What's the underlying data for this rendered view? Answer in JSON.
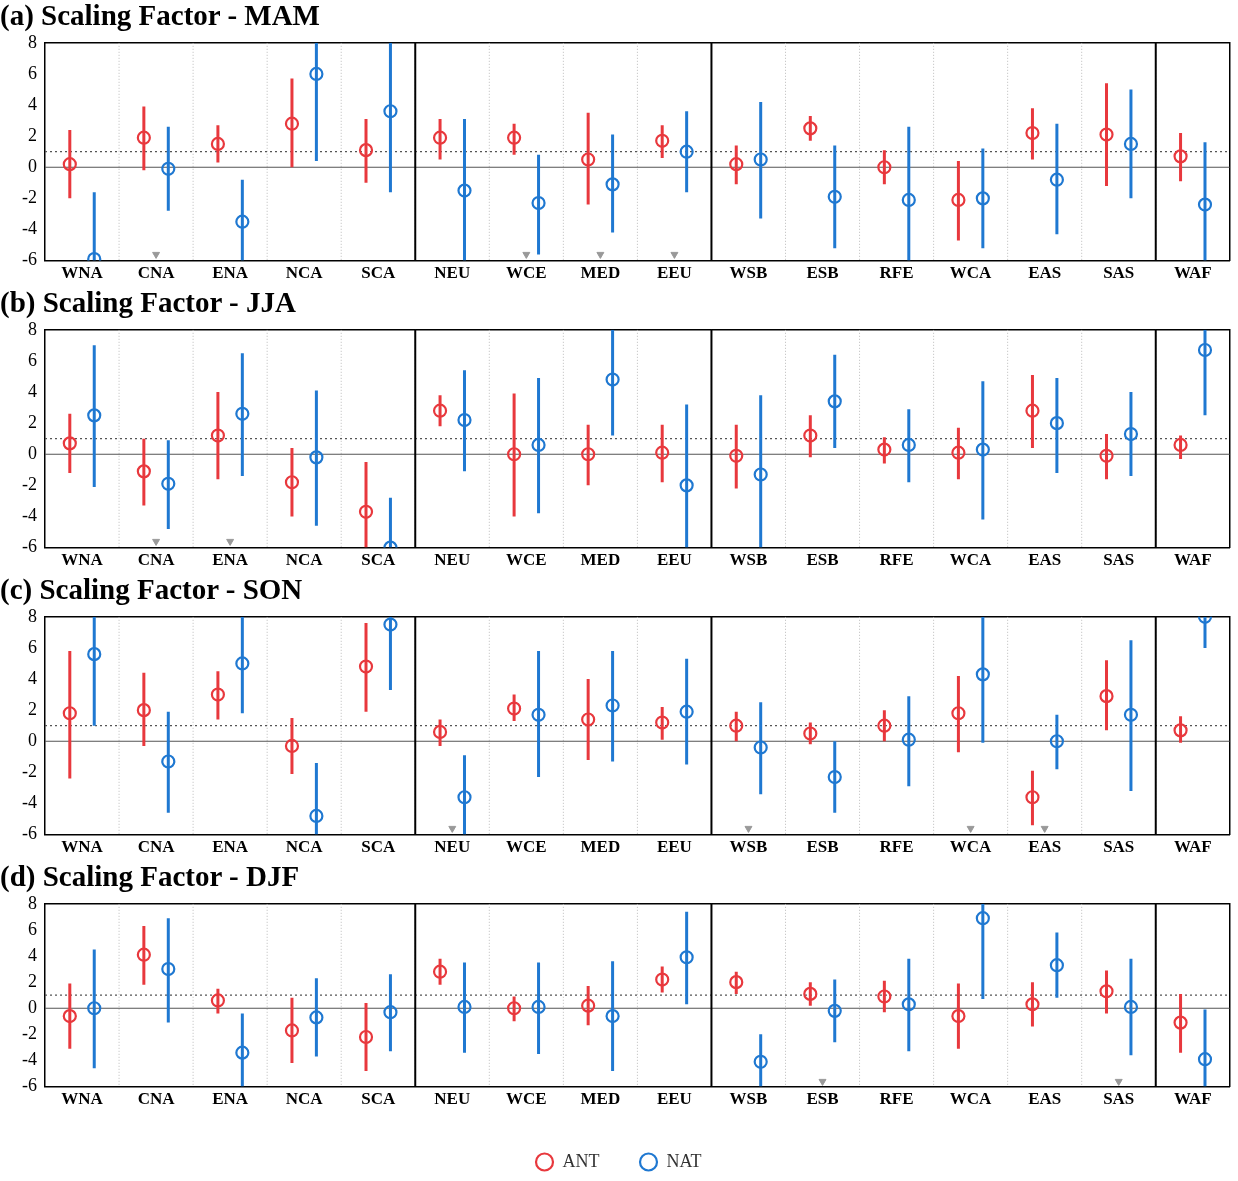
{
  "chart_data": [
    {
      "type": "scatter",
      "title": "(a) Scaling Factor - MAM",
      "categories": [
        "WNA",
        "CNA",
        "ENA",
        "NCA",
        "SCA",
        "NEU",
        "WCE",
        "MED",
        "EEU",
        "WSB",
        "ESB",
        "RFE",
        "WCA",
        "EAS",
        "SAS",
        "WAF"
      ],
      "ylim": [
        -6,
        8
      ],
      "yticks": [
        -6,
        -4,
        -2,
        0,
        2,
        4,
        6,
        8
      ],
      "grid": "x",
      "marker": "circle",
      "legend": false,
      "series": [
        {
          "color": "#e8383d",
          "values": [
            0.2,
            1.9,
            1.5,
            2.8,
            1.1,
            1.9,
            1.9,
            0.5,
            1.7,
            0.2,
            2.5,
            0.0,
            -2.1,
            2.2,
            2.1,
            0.7
          ],
          "errors": [
            [
              -2,
              2.4
            ],
            [
              -0.2,
              3.9
            ],
            [
              0.3,
              2.7
            ],
            [
              0,
              5.7
            ],
            [
              -1,
              3.1
            ],
            [
              0.5,
              3.1
            ],
            [
              0.8,
              2.8
            ],
            [
              -2.4,
              3.5
            ],
            [
              0.6,
              2.7
            ],
            [
              -1.1,
              1.4
            ],
            [
              1.7,
              3.3
            ],
            [
              -1.1,
              1.1
            ],
            [
              -4.7,
              0.4
            ],
            [
              0.5,
              3.8
            ],
            [
              -1.2,
              5.4
            ],
            [
              -0.9,
              2.2
            ]
          ]
        },
        {
          "color": "#1f78d1",
          "values": [
            -5.9,
            -0.1,
            -3.5,
            6.0,
            3.6,
            -1.5,
            -2.3,
            -1.1,
            1.0,
            0.5,
            -1.9,
            -2.1,
            -2.0,
            -0.8,
            1.5,
            -2.4
          ],
          "errors": [
            [
              -6,
              -1.6
            ],
            [
              -2.8,
              2.6
            ],
            [
              -6,
              -0.8
            ],
            [
              0.4,
              8
            ],
            [
              -1.6,
              8
            ],
            [
              -6,
              3.1
            ],
            [
              -5.6,
              0.8
            ],
            [
              -4.2,
              2.1
            ],
            [
              -1.6,
              3.6
            ],
            [
              -3.3,
              4.2
            ],
            [
              -5.2,
              1.4
            ],
            [
              -6,
              2.6
            ],
            [
              -5.2,
              1.2
            ],
            [
              -4.3,
              2.8
            ],
            [
              -2,
              5
            ],
            [
              -6,
              1.6
            ]
          ]
        },
        {
          "color": "#999999",
          "marker": "triangle",
          "values": [
            null,
            -5.6,
            null,
            null,
            null,
            null,
            -5.6,
            -5.6,
            -5.6,
            null,
            null,
            null,
            null,
            null,
            null,
            null
          ]
        }
      ],
      "ref_lines": [
        {
          "axis": "y",
          "value": 0,
          "line_style": "solid"
        },
        {
          "axis": "y",
          "value": 1,
          "line_style": "dotted"
        }
      ]
    },
    {
      "type": "scatter",
      "title": "(b) Scaling Factor - JJA",
      "categories": [
        "WNA",
        "CNA",
        "ENA",
        "NCA",
        "SCA",
        "NEU",
        "WCE",
        "MED",
        "EEU",
        "WSB",
        "ESB",
        "RFE",
        "WCA",
        "EAS",
        "SAS",
        "WAF"
      ],
      "ylim": [
        -6,
        8
      ],
      "yticks": [
        -6,
        -4,
        -2,
        0,
        2,
        4,
        6,
        8
      ],
      "grid": "x",
      "marker": "circle",
      "legend": false,
      "series": [
        {
          "color": "#e8383d",
          "values": [
            0.7,
            -1.1,
            1.2,
            -1.8,
            -3.7,
            2.8,
            0.0,
            0.0,
            0.1,
            -0.1,
            1.2,
            0.3,
            0.1,
            2.8,
            -0.1,
            0.6
          ],
          "errors": [
            [
              -1.2,
              2.6
            ],
            [
              -3.3,
              1.0
            ],
            [
              -1.6,
              4.0
            ],
            [
              -4.0,
              0.4
            ],
            [
              -6,
              -0.5
            ],
            [
              1.8,
              3.8
            ],
            [
              -4.0,
              3.9
            ],
            [
              -2.0,
              1.9
            ],
            [
              -1.8,
              1.9
            ],
            [
              -2.2,
              1.9
            ],
            [
              -0.2,
              2.5
            ],
            [
              -0.6,
              1.1
            ],
            [
              -1.6,
              1.7
            ],
            [
              0.4,
              5.1
            ],
            [
              -1.6,
              1.3
            ],
            [
              -0.3,
              1.2
            ]
          ]
        },
        {
          "color": "#1f78d1",
          "values": [
            2.5,
            -1.9,
            2.6,
            -0.2,
            -6,
            2.2,
            0.6,
            4.8,
            -2.0,
            -1.3,
            3.4,
            0.6,
            0.3,
            2.0,
            1.3,
            6.7
          ],
          "errors": [
            [
              -2.1,
              7.0
            ],
            [
              -4.8,
              0.9
            ],
            [
              -1.4,
              6.5
            ],
            [
              -4.6,
              4.1
            ],
            [
              -6,
              -2.8
            ],
            [
              -1.1,
              5.4
            ],
            [
              -3.8,
              4.9
            ],
            [
              1.2,
              8
            ],
            [
              -6,
              3.2
            ],
            [
              -6,
              3.8
            ],
            [
              0.4,
              6.4
            ],
            [
              -1.8,
              2.9
            ],
            [
              -4.2,
              4.7
            ],
            [
              -1.2,
              4.9
            ],
            [
              -1.4,
              4.0
            ],
            [
              2.5,
              8
            ]
          ]
        },
        {
          "color": "#999999",
          "marker": "triangle",
          "values": [
            null,
            -5.6,
            -5.6,
            null,
            null,
            null,
            null,
            null,
            null,
            null,
            null,
            null,
            null,
            null,
            null,
            null
          ]
        }
      ],
      "ref_lines": [
        {
          "axis": "y",
          "value": 0,
          "line_style": "solid"
        },
        {
          "axis": "y",
          "value": 1,
          "line_style": "dotted"
        }
      ]
    },
    {
      "type": "scatter",
      "title": "(c) Scaling Factor - SON",
      "categories": [
        "WNA",
        "CNA",
        "ENA",
        "NCA",
        "SCA",
        "NEU",
        "WCE",
        "MED",
        "EEU",
        "WSB",
        "ESB",
        "RFE",
        "WCA",
        "EAS",
        "SAS",
        "WAF"
      ],
      "ylim": [
        -6,
        8
      ],
      "yticks": [
        -6,
        -4,
        -2,
        0,
        2,
        4,
        6,
        8
      ],
      "grid": "x",
      "marker": "circle",
      "legend": false,
      "series": [
        {
          "color": "#e8383d",
          "values": [
            1.8,
            2.0,
            3.0,
            -0.3,
            4.8,
            0.6,
            2.1,
            1.4,
            1.2,
            1.0,
            0.5,
            1.0,
            1.8,
            -3.6,
            2.9,
            0.7
          ],
          "errors": [
            [
              -2.4,
              5.8
            ],
            [
              -0.3,
              4.4
            ],
            [
              1.4,
              4.5
            ],
            [
              -2.1,
              1.5
            ],
            [
              1.9,
              7.6
            ],
            [
              -0.3,
              1.4
            ],
            [
              1.3,
              3.0
            ],
            [
              -1.2,
              4.0
            ],
            [
              0.1,
              2.2
            ],
            [
              0.0,
              1.9
            ],
            [
              -0.2,
              1.2
            ],
            [
              0.0,
              2.0
            ],
            [
              -0.7,
              4.2
            ],
            [
              -5.4,
              -1.9
            ],
            [
              0.7,
              5.2
            ],
            [
              -0.1,
              1.6
            ]
          ]
        },
        {
          "color": "#1f78d1",
          "values": [
            5.6,
            -1.3,
            5.0,
            -4.8,
            7.5,
            -3.6,
            1.7,
            2.3,
            1.9,
            -0.4,
            -2.3,
            0.1,
            4.3,
            0.0,
            1.7,
            8
          ],
          "errors": [
            [
              1.0,
              8
            ],
            [
              -4.6,
              1.9
            ],
            [
              1.8,
              8
            ],
            [
              -6,
              -1.4
            ],
            [
              3.3,
              8
            ],
            [
              -6,
              -0.9
            ],
            [
              -2.3,
              5.8
            ],
            [
              -1.3,
              5.8
            ],
            [
              -1.5,
              5.3
            ],
            [
              -3.4,
              2.5
            ],
            [
              -4.6,
              0.0
            ],
            [
              -2.9,
              2.9
            ],
            [
              -0.1,
              8
            ],
            [
              -1.8,
              1.7
            ],
            [
              -3.2,
              6.5
            ],
            [
              6.0,
              8
            ]
          ]
        },
        {
          "color": "#999999",
          "marker": "triangle",
          "values": [
            null,
            null,
            null,
            null,
            null,
            -5.6,
            null,
            null,
            null,
            -5.6,
            null,
            null,
            -5.6,
            -5.6,
            null,
            null
          ]
        }
      ],
      "ref_lines": [
        {
          "axis": "y",
          "value": 0,
          "line_style": "solid"
        },
        {
          "axis": "y",
          "value": 1,
          "line_style": "dotted"
        }
      ]
    },
    {
      "type": "scatter",
      "title": "(d) Scaling Factor - DJF",
      "categories": [
        "WNA",
        "CNA",
        "ENA",
        "NCA",
        "SCA",
        "NEU",
        "WCE",
        "MED",
        "EEU",
        "WSB",
        "ESB",
        "RFE",
        "WCA",
        "EAS",
        "SAS",
        "WAF"
      ],
      "ylim": [
        -6,
        8
      ],
      "yticks": [
        -6,
        -4,
        -2,
        0,
        2,
        4,
        6,
        8
      ],
      "grid": "x",
      "marker": "circle",
      "legend": "bottom",
      "series": [
        {
          "name": "ANT",
          "color": "#e8383d",
          "values": [
            -0.6,
            4.1,
            0.6,
            -1.7,
            -2.2,
            2.8,
            0.0,
            0.2,
            2.2,
            2.0,
            1.1,
            0.9,
            -0.6,
            0.3,
            1.3,
            -1.1
          ],
          "errors": [
            [
              -3.1,
              1.9
            ],
            [
              1.8,
              6.3
            ],
            [
              -0.4,
              1.5
            ],
            [
              -4.2,
              0.8
            ],
            [
              -4.8,
              0.4
            ],
            [
              1.8,
              3.8
            ],
            [
              -1.0,
              0.9
            ],
            [
              -1.3,
              1.7
            ],
            [
              1.2,
              3.2
            ],
            [
              1.1,
              2.8
            ],
            [
              0.2,
              2.0
            ],
            [
              -0.3,
              2.1
            ],
            [
              -3.1,
              1.9
            ],
            [
              -1.4,
              2.0
            ],
            [
              -0.4,
              2.9
            ],
            [
              -3.4,
              1.1
            ]
          ]
        },
        {
          "name": "NAT",
          "color": "#1f78d1",
          "values": [
            0.0,
            3.0,
            -3.4,
            -0.7,
            -0.3,
            0.1,
            0.1,
            -0.6,
            3.9,
            -4.1,
            -0.2,
            0.3,
            6.9,
            3.3,
            0.1,
            -3.9
          ],
          "errors": [
            [
              -4.6,
              4.5
            ],
            [
              -1.1,
              6.9
            ],
            [
              -6,
              -0.4
            ],
            [
              -3.7,
              2.3
            ],
            [
              -3.3,
              2.6
            ],
            [
              -3.4,
              3.5
            ],
            [
              -3.5,
              3.5
            ],
            [
              -4.8,
              3.6
            ],
            [
              0.3,
              7.4
            ],
            [
              -6,
              -2.0
            ],
            [
              -2.6,
              2.2
            ],
            [
              -3.3,
              3.8
            ],
            [
              0.7,
              8
            ],
            [
              0.8,
              5.8
            ],
            [
              -3.6,
              3.8
            ],
            [
              -6,
              -0.1
            ]
          ]
        },
        {
          "color": "#999999",
          "marker": "triangle",
          "values": [
            null,
            null,
            null,
            null,
            null,
            null,
            null,
            null,
            null,
            null,
            -5.6,
            null,
            null,
            null,
            -5.6,
            null
          ]
        }
      ],
      "ref_lines": [
        {
          "axis": "y",
          "value": 0,
          "line_style": "solid"
        },
        {
          "axis": "y",
          "value": 1,
          "line_style": "dotted"
        }
      ]
    }
  ]
}
